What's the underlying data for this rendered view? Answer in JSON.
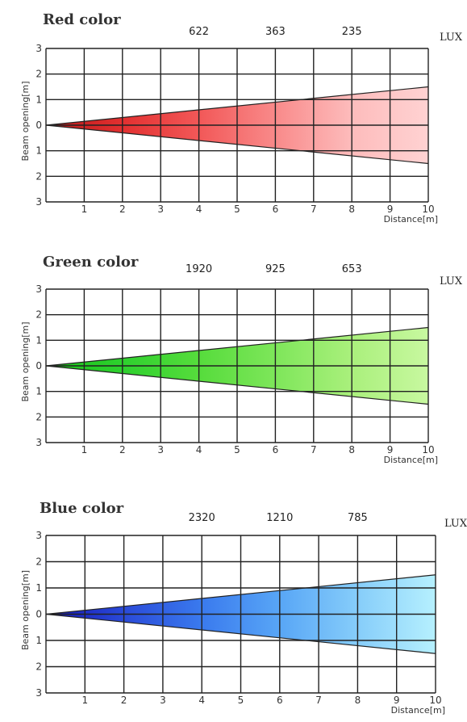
{
  "chart_data": [
    {
      "type": "area",
      "title": "Red color",
      "xlabel": "Distance[m]",
      "ylabel": "Beam opening[m]",
      "lux_label": "LUX",
      "lux": [
        {
          "x": 4.0,
          "value": "622"
        },
        {
          "x": 6.0,
          "value": "363"
        },
        {
          "x": 8.0,
          "value": "235"
        }
      ],
      "x_ticks": [
        "1",
        "2",
        "3",
        "4",
        "5",
        "6",
        "7",
        "8",
        "9",
        "10"
      ],
      "y_ticks": [
        "3",
        "2",
        "1",
        "0",
        "1",
        "2",
        "3"
      ],
      "xlim": [
        0,
        10
      ],
      "ylim": [
        -3,
        3
      ],
      "beam": {
        "x": [
          0,
          10
        ],
        "upper": [
          0,
          1.5
        ],
        "lower": [
          0,
          -1.5
        ]
      },
      "gradient": [
        "#b81818",
        "#e23030",
        "#f25858",
        "#f98a8a",
        "#fdbcbc",
        "#ffd2d2"
      ],
      "grid": true
    },
    {
      "type": "area",
      "title": "Green color",
      "xlabel": "Distance[m]",
      "ylabel": "Beam opening[m]",
      "lux_label": "LUX",
      "lux": [
        {
          "x": 4.0,
          "value": "1920"
        },
        {
          "x": 6.0,
          "value": "925"
        },
        {
          "x": 8.0,
          "value": "653"
        }
      ],
      "x_ticks": [
        "1",
        "2",
        "3",
        "4",
        "5",
        "6",
        "7",
        "8",
        "9",
        "10"
      ],
      "y_ticks": [
        "3",
        "2",
        "1",
        "0",
        "1",
        "2",
        "3"
      ],
      "xlim": [
        0,
        10
      ],
      "ylim": [
        -3,
        3
      ],
      "beam": {
        "x": [
          0,
          10
        ],
        "upper": [
          0,
          1.5
        ],
        "lower": [
          0,
          -1.5
        ]
      },
      "gradient": [
        "#18c418",
        "#2ed02e",
        "#56dc3c",
        "#7ee65a",
        "#aaf07c",
        "#c8f8a0"
      ],
      "grid": true
    },
    {
      "type": "area",
      "title": "Blue color",
      "xlabel": "Distance[m]",
      "ylabel": "Beam opening[m]",
      "lux_label": "LUX",
      "lux": [
        {
          "x": 4.0,
          "value": "2320"
        },
        {
          "x": 6.0,
          "value": "1210"
        },
        {
          "x": 8.0,
          "value": "785"
        }
      ],
      "x_ticks": [
        "1",
        "2",
        "3",
        "4",
        "5",
        "6",
        "7",
        "8",
        "9",
        "10"
      ],
      "y_ticks": [
        "3",
        "2",
        "1",
        "0",
        "1",
        "2",
        "3"
      ],
      "xlim": [
        0,
        10
      ],
      "ylim": [
        -3,
        3
      ],
      "beam": {
        "x": [
          0,
          10
        ],
        "upper": [
          0,
          1.5
        ],
        "lower": [
          0,
          -1.5
        ]
      },
      "gradient": [
        "#1414b4",
        "#2a4ad8",
        "#3a7aee",
        "#58a6f6",
        "#86cdfa",
        "#b6f0fe"
      ],
      "grid": true
    }
  ]
}
